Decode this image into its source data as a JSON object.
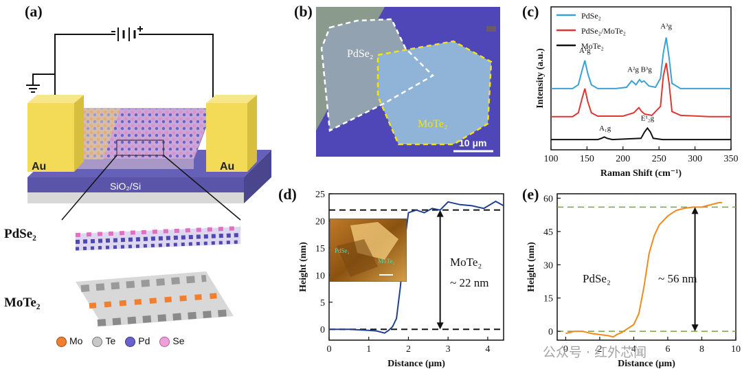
{
  "panels": {
    "a": {
      "label": "(a)",
      "electrode_left": "Au",
      "electrode_right": "Au",
      "substrate": "SiO₂/Si",
      "layer_top": "PdSe₂",
      "layer_bottom": "MoTe₂",
      "legend": [
        "Mo",
        "Te",
        "Pd",
        "Se"
      ],
      "legend_colors": [
        "#f08030",
        "#c8c8c8",
        "#6a62c8",
        "#f0a0d8"
      ]
    },
    "b": {
      "label": "(b)",
      "flake1": "PdSe₂",
      "flake2": "MoTe₂",
      "scalebar": "10 μm"
    },
    "c": {
      "label": "(c)",
      "axis_labels": {
        "x": "Raman Shift (cm⁻¹)",
        "y": "Intensity (a.u.)"
      }
    },
    "d": {
      "label": "(d)",
      "axis_labels": {
        "x": "Distance (μm)",
        "y": "Height (nm)"
      },
      "annotation_material": "MoTe₂",
      "annotation_value": "~ 22 nm",
      "inset_labels": [
        "PdSe₂",
        "MoTe₂"
      ]
    },
    "e": {
      "label": "(e)",
      "axis_labels": {
        "x": "Distance (μm)",
        "y": "Height (nm)"
      },
      "annotation_material": "PdSe₂",
      "annotation_value": "~ 56 nm"
    }
  },
  "watermark": "公众号 · 红外芯闻",
  "chart_data": [
    {
      "panel": "c",
      "type": "line",
      "xlabel": "Raman Shift (cm⁻¹)",
      "ylabel": "Intensity (a.u.)",
      "xlim": [
        100,
        350
      ],
      "xticks": [
        100,
        150,
        200,
        250,
        300,
        350
      ],
      "legend_position": "top-left",
      "series": [
        {
          "name": "PdSe₂",
          "color": "#3aa0d8",
          "x": [
            100,
            130,
            138,
            143,
            147,
            151,
            156,
            165,
            190,
            205,
            212,
            218,
            223,
            226,
            229,
            236,
            245,
            252,
            256,
            260,
            264,
            268,
            280,
            320,
            350
          ],
          "y": [
            2.0,
            2.0,
            2.15,
            2.7,
            3.1,
            2.6,
            2.15,
            2.0,
            2.0,
            2.05,
            2.3,
            2.15,
            2.35,
            2.25,
            2.3,
            2.1,
            2.05,
            2.4,
            3.4,
            4.0,
            3.2,
            2.2,
            2.0,
            2.0,
            2.0
          ]
        },
        {
          "name": "PdSe₂/MoTe₂",
          "color": "#e03530",
          "x": [
            100,
            130,
            138,
            143,
            147,
            151,
            156,
            165,
            200,
            215,
            222,
            226,
            230,
            240,
            252,
            256,
            260,
            264,
            268,
            280,
            320,
            350
          ],
          "y": [
            0.9,
            0.9,
            1.05,
            1.6,
            2.0,
            1.5,
            1.05,
            0.92,
            0.92,
            1.05,
            1.25,
            1.1,
            1.0,
            0.95,
            1.3,
            2.5,
            3.0,
            2.2,
            1.1,
            0.95,
            0.9,
            0.9
          ]
        },
        {
          "name": "MoTe₂",
          "color": "#111111",
          "x": [
            100,
            165,
            170,
            174,
            178,
            185,
            225,
            230,
            234,
            238,
            242,
            255,
            350
          ],
          "y": [
            0.0,
            0.0,
            0.05,
            0.1,
            0.05,
            0.0,
            0.05,
            0.3,
            0.45,
            0.3,
            0.05,
            0.0,
            0.0
          ]
        }
      ],
      "peak_labels": [
        {
          "text": "A¹g",
          "x": 147,
          "y": 3.4
        },
        {
          "text": "A²g B³g",
          "x": 223,
          "y": 2.65
        },
        {
          "text": "A³g",
          "x": 260,
          "y": 4.35
        },
        {
          "text": "A₁g",
          "x": 175,
          "y": 0.35
        },
        {
          "text": "E¹₂g",
          "x": 234,
          "y": 0.75
        }
      ]
    },
    {
      "panel": "d",
      "type": "line",
      "xlabel": "Distance (μm)",
      "ylabel": "Height (nm)",
      "xlim": [
        0,
        4.4
      ],
      "ylim": [
        -2,
        25
      ],
      "xticks": [
        0,
        1,
        2,
        3,
        4
      ],
      "yticks": [
        0,
        5,
        10,
        15,
        20,
        25
      ],
      "reference_lines": [
        0,
        22
      ],
      "series": [
        {
          "name": "",
          "color": "#1f3f90",
          "x": [
            0,
            0.5,
            1.0,
            1.2,
            1.4,
            1.5,
            1.6,
            1.7,
            1.8,
            1.9,
            2.0,
            2.2,
            2.4,
            2.6,
            2.8,
            3.0,
            3.3,
            3.6,
            3.9,
            4.2,
            4.4
          ],
          "y": [
            0,
            0,
            -0.2,
            -0.3,
            -0.7,
            -0.2,
            0.5,
            2.0,
            8.0,
            16.0,
            21.5,
            22.0,
            21.5,
            22.3,
            22.0,
            23.5,
            23.0,
            22.8,
            22.3,
            23.6,
            22.8
          ]
        }
      ]
    },
    {
      "panel": "e",
      "type": "line",
      "xlabel": "Distance (μm)",
      "ylabel": "Height (nm)",
      "xlim": [
        -0.5,
        10
      ],
      "ylim": [
        -4,
        62
      ],
      "xticks": [
        0,
        2,
        4,
        6,
        8,
        10
      ],
      "yticks": [
        0,
        15,
        30,
        45,
        60
      ],
      "reference_lines": [
        0,
        56
      ],
      "series": [
        {
          "name": "",
          "color": "#f08a1c",
          "x": [
            0,
            0.5,
            1.0,
            1.5,
            2.0,
            2.5,
            2.8,
            3.0,
            3.3,
            3.6,
            4.0,
            4.3,
            4.6,
            4.9,
            5.2,
            5.5,
            6.0,
            6.5,
            7.0,
            7.5,
            8.0,
            8.5,
            9.0,
            9.2
          ],
          "y": [
            -1,
            0,
            0,
            -1,
            -1.5,
            -2,
            -2.5,
            -1.5,
            -0.5,
            1,
            3,
            8,
            20,
            35,
            43,
            48,
            52,
            54.5,
            55.5,
            56,
            56,
            57,
            58,
            58
          ]
        }
      ]
    }
  ]
}
